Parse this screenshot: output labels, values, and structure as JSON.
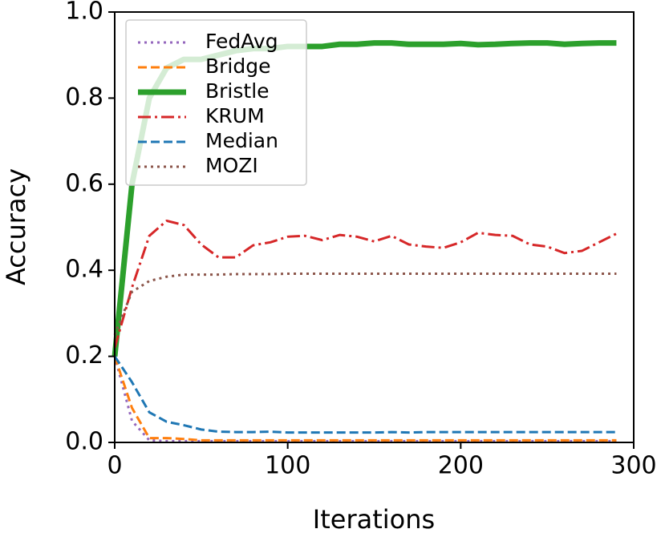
{
  "chart_data": {
    "type": "line",
    "xlabel": "Iterations",
    "ylabel": "Accuracy",
    "x": [
      0,
      10,
      20,
      30,
      40,
      50,
      60,
      70,
      80,
      90,
      100,
      110,
      120,
      130,
      140,
      150,
      160,
      170,
      180,
      190,
      200,
      210,
      220,
      230,
      240,
      250,
      260,
      270,
      280,
      290
    ],
    "xlim": [
      0,
      300
    ],
    "xticks": [
      0,
      100,
      200,
      300
    ],
    "ylim": [
      0,
      1
    ],
    "yticks": [
      {
        "value": 0,
        "label": "0.0"
      },
      {
        "value": 0.2,
        "label": "0.2"
      },
      {
        "value": 0.4,
        "label": "0.4"
      },
      {
        "value": 0.6,
        "label": "0.6"
      },
      {
        "value": 0.8,
        "label": "0.8"
      },
      {
        "value": 1,
        "label": "1.0"
      }
    ],
    "legend": "upper left",
    "series": [
      {
        "name": "FedAvg",
        "color": "#9467bd",
        "linestyle": "dotted",
        "linewidth": 3,
        "values": [
          0.2,
          0.05,
          0.005,
          0.003,
          0.003,
          0.003,
          0.003,
          0.003,
          0.003,
          0.003,
          0.003,
          0.003,
          0.003,
          0.003,
          0.003,
          0.003,
          0.003,
          0.003,
          0.003,
          0.003,
          0.003,
          0.003,
          0.003,
          0.003,
          0.003,
          0.003,
          0.003,
          0.003,
          0.003,
          0.003
        ]
      },
      {
        "name": "Bridge",
        "color": "#ff7f0e",
        "linestyle": "dashed",
        "linewidth": 3,
        "values": [
          0.2,
          0.08,
          0.01,
          0.01,
          0.008,
          0.005,
          0.005,
          0.005,
          0.005,
          0.005,
          0.005,
          0.005,
          0.005,
          0.005,
          0.005,
          0.005,
          0.005,
          0.005,
          0.005,
          0.005,
          0.005,
          0.005,
          0.005,
          0.005,
          0.005,
          0.005,
          0.005,
          0.005,
          0.005,
          0.005
        ]
      },
      {
        "name": "Bristle",
        "color": "#2ca02c",
        "linestyle": "solid",
        "linewidth": 7,
        "values": [
          0.2,
          0.6,
          0.8,
          0.87,
          0.89,
          0.89,
          0.9,
          0.91,
          0.915,
          0.915,
          0.92,
          0.92,
          0.92,
          0.925,
          0.925,
          0.928,
          0.928,
          0.925,
          0.925,
          0.925,
          0.927,
          0.924,
          0.925,
          0.927,
          0.928,
          0.928,
          0.925,
          0.927,
          0.928,
          0.928
        ]
      },
      {
        "name": "KRUM",
        "color": "#d62728",
        "linestyle": "dashdot",
        "linewidth": 3,
        "values": [
          0.22,
          0.36,
          0.48,
          0.515,
          0.505,
          0.46,
          0.43,
          0.43,
          0.458,
          0.465,
          0.478,
          0.48,
          0.47,
          0.482,
          0.478,
          0.467,
          0.48,
          0.46,
          0.455,
          0.452,
          0.465,
          0.487,
          0.482,
          0.48,
          0.46,
          0.455,
          0.44,
          0.445,
          0.465,
          0.485
        ]
      },
      {
        "name": "Median",
        "color": "#1f77b4",
        "linestyle": "dashed",
        "linewidth": 3,
        "values": [
          0.2,
          0.14,
          0.07,
          0.048,
          0.04,
          0.03,
          0.025,
          0.024,
          0.024,
          0.025,
          0.023,
          0.023,
          0.023,
          0.023,
          0.023,
          0.023,
          0.024,
          0.023,
          0.024,
          0.024,
          0.024,
          0.024,
          0.024,
          0.024,
          0.024,
          0.024,
          0.024,
          0.024,
          0.024,
          0.024
        ]
      },
      {
        "name": "MOZI",
        "color": "#8c564b",
        "linestyle": "dotted",
        "linewidth": 3,
        "values": [
          0.25,
          0.35,
          0.375,
          0.385,
          0.39,
          0.39,
          0.39,
          0.391,
          0.391,
          0.391,
          0.392,
          0.392,
          0.392,
          0.392,
          0.392,
          0.392,
          0.392,
          0.392,
          0.392,
          0.392,
          0.392,
          0.392,
          0.392,
          0.392,
          0.392,
          0.392,
          0.392,
          0.392,
          0.392,
          0.392
        ]
      }
    ]
  }
}
